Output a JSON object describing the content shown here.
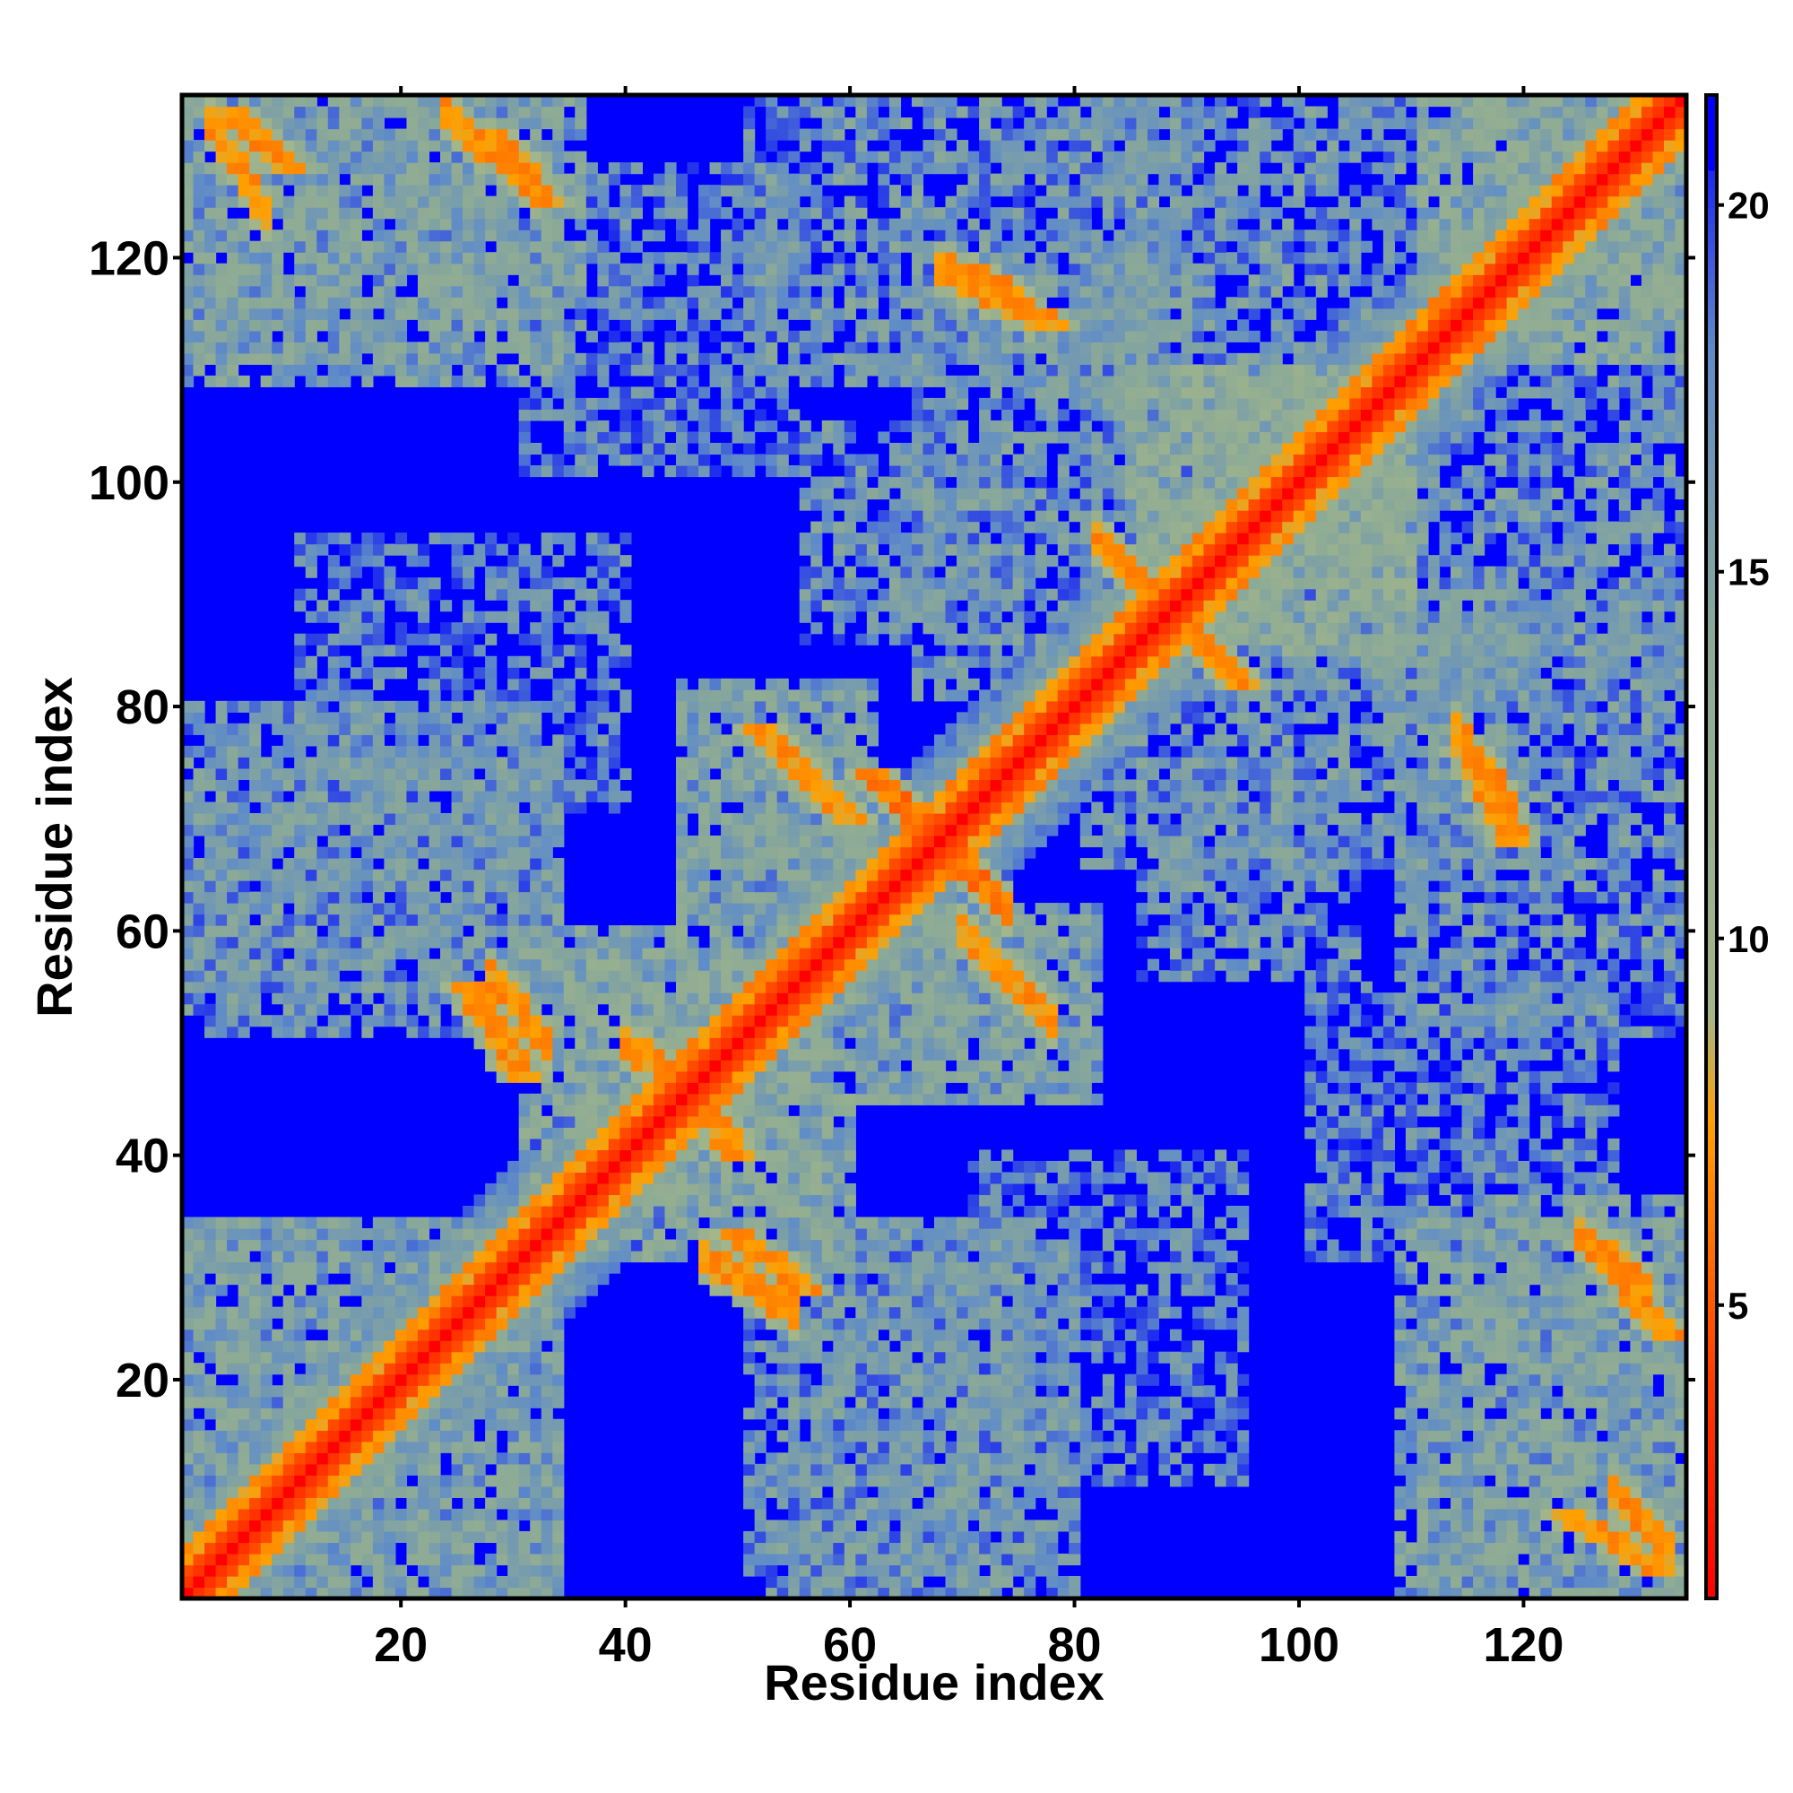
{
  "chart_data": {
    "type": "heatmap",
    "title": "",
    "xlabel": "Residue index",
    "ylabel": "Residue index",
    "n_residues": 134,
    "xlim": [
      1,
      134
    ],
    "ylim": [
      1,
      134
    ],
    "x_ticks": [
      20,
      40,
      60,
      80,
      100,
      120
    ],
    "y_ticks": [
      20,
      40,
      60,
      80,
      100,
      120
    ],
    "x_tick_labels": [
      "20",
      "40",
      "60",
      "80",
      100,
      "120"
    ],
    "y_tick_labels": [
      "20",
      "40",
      "60",
      "80",
      "100",
      "120"
    ],
    "colorbar": {
      "range": [
        1,
        21.5
      ],
      "ticks": [
        5,
        10,
        15,
        20
      ],
      "tick_labels": [
        "5",
        "10",
        "15",
        "20"
      ],
      "colors": {
        "contact": "#ff0000",
        "near": "#ff8c00",
        "medium": "#a4b68a",
        "far": "#5f8cc8",
        "max": "#0000ff"
      }
    },
    "grid": false,
    "features": {
      "diagonal": "red band along main diagonal",
      "helix_contacts": [
        {
          "i": [
            52,
            60
          ],
          "j": [
            70,
            78
          ],
          "value": 6
        },
        {
          "i": [
            62,
            68
          ],
          "j": [
            68,
            74
          ],
          "value": 5
        },
        {
          "i": [
            5,
            10
          ],
          "j": [
            128,
            133
          ],
          "value": 6
        },
        {
          "i": [
            28,
            33
          ],
          "j": [
            125,
            131
          ],
          "value": 6
        },
        {
          "i": [
            115,
            119
          ],
          "j": [
            68,
            76
          ],
          "value": 6
        },
        {
          "i": [
            71,
            78
          ],
          "j": [
            114,
            119
          ],
          "value": 6
        },
        {
          "i": [
            44,
            50
          ],
          "j": [
            40,
            48
          ],
          "value": 6
        },
        {
          "i": [
            26,
            31
          ],
          "j": [
            47,
            55
          ],
          "value": 6
        },
        {
          "i": [
            50,
            56
          ],
          "j": [
            28,
            33
          ],
          "value": 6
        },
        {
          "i": [
            124,
            132
          ],
          "j": [
            3,
            8
          ],
          "value": 6
        },
        {
          "i": [
            126,
            133
          ],
          "j": [
            24,
            32
          ],
          "value": 6
        },
        {
          "i": [
            85,
            95
          ],
          "j": [
            82,
            92
          ],
          "value": 6
        }
      ]
    }
  }
}
